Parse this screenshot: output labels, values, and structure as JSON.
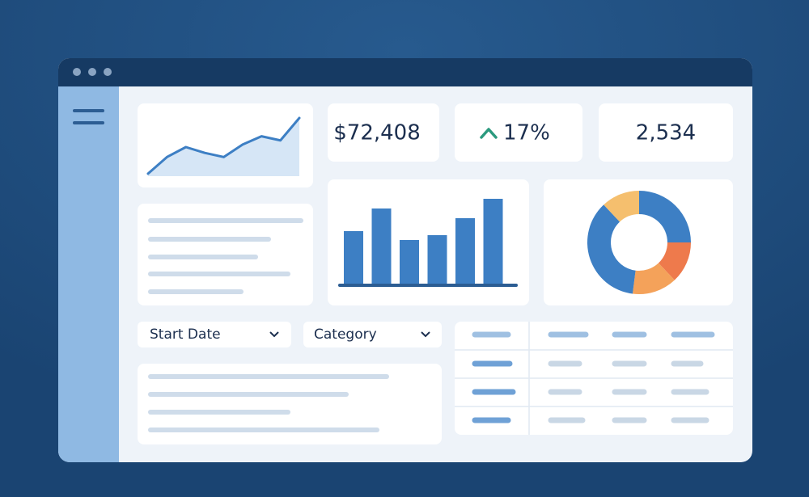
{
  "kpis": [
    "$72,408",
    "17%",
    "2,534"
  ],
  "filters": [
    "Start Date",
    "Category"
  ],
  "chart_data": [
    {
      "type": "line",
      "values": [
        3,
        23,
        35,
        28,
        23,
        38,
        48,
        43,
        70
      ],
      "color": "#3d7fc4"
    },
    {
      "type": "bar",
      "values": [
        66,
        94,
        55,
        61,
        82,
        106
      ],
      "color": "#3d7fc4"
    },
    {
      "type": "pie",
      "values": [
        25,
        13,
        14,
        36,
        12
      ],
      "colors": [
        "#3d7fc4",
        "#ee7a4c",
        "#f4a25a",
        "#3d7fc4",
        "#f5bf6e"
      ]
    }
  ]
}
